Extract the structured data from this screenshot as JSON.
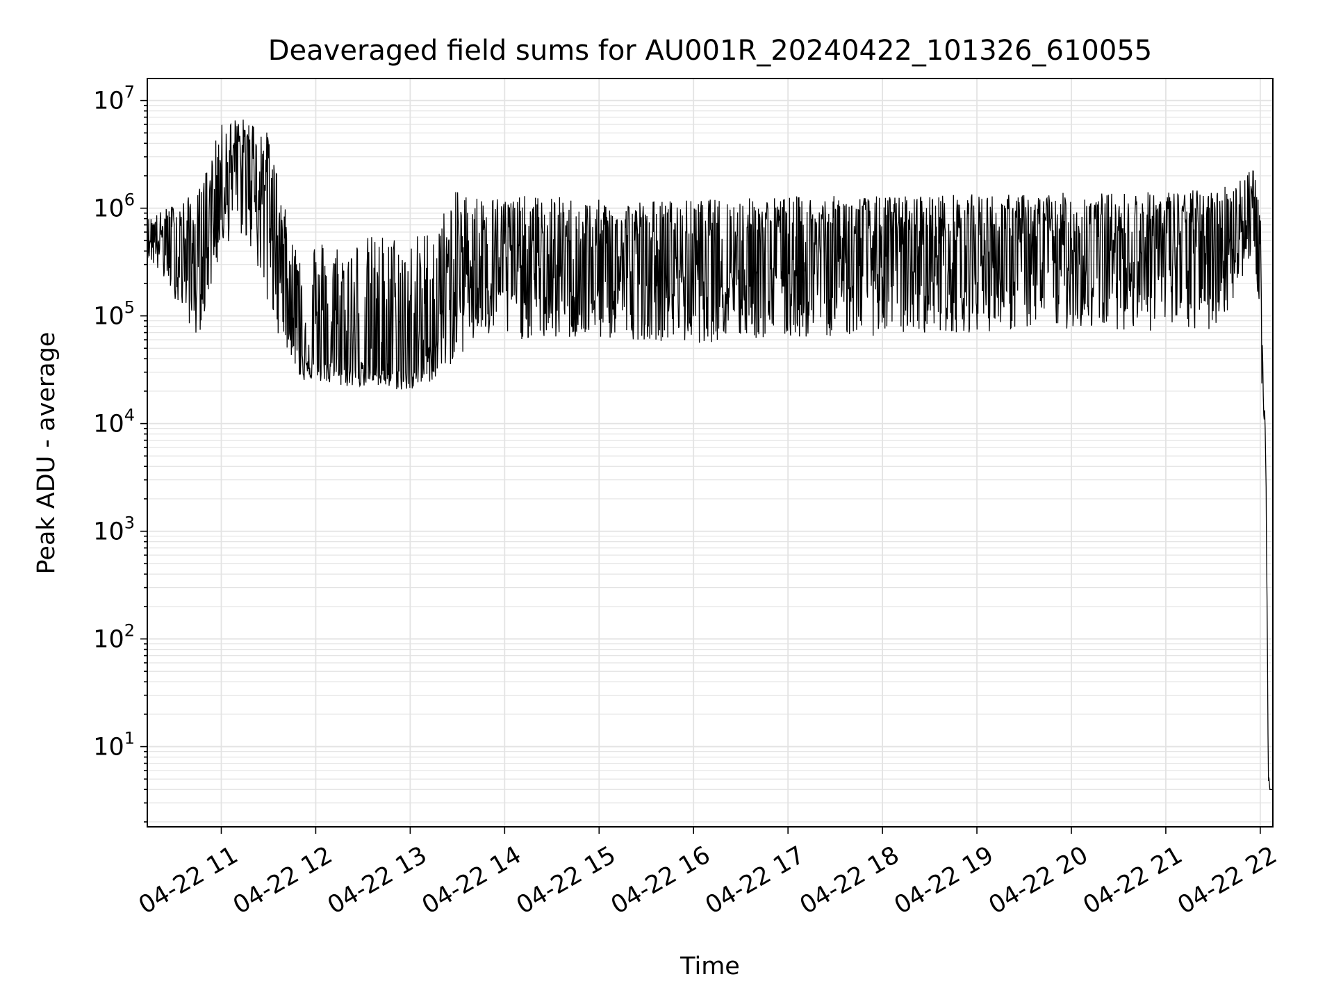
{
  "chart_data": {
    "type": "line",
    "title": "Deaveraged field sums for AU001R_20240422_101326_610055",
    "xlabel": "Time",
    "ylabel": "Peak ADU - average",
    "yscale": "log",
    "ylim": [
      1.8,
      16000000
    ],
    "xlim": [
      "04-22 10:13",
      "04-22 22:08"
    ],
    "x_tick_labels": [
      "04-22 11",
      "04-22 12",
      "04-22 13",
      "04-22 14",
      "04-22 15",
      "04-22 16",
      "04-22 17",
      "04-22 18",
      "04-22 19",
      "04-22 20",
      "04-22 21",
      "04-22 22"
    ],
    "x_tick_values": [
      "04-22 11:00",
      "04-22 12:00",
      "04-22 13:00",
      "04-22 14:00",
      "04-22 15:00",
      "04-22 16:00",
      "04-22 17:00",
      "04-22 18:00",
      "04-22 19:00",
      "04-22 20:00",
      "04-22 21:00",
      "04-22 22:00"
    ],
    "y_tick_values": [
      10,
      100,
      1000,
      10000,
      100000,
      1000000,
      10000000
    ],
    "y_tick_exponents": [
      "1",
      "2",
      "3",
      "4",
      "5",
      "6",
      "7"
    ],
    "y_tick_base": "10",
    "grid": true,
    "legend": "none",
    "line_color": "#000000",
    "grid_color": "#e3e3e3",
    "series": [
      {
        "x": [
          "04-22 10:13",
          "04-22 10:30",
          "04-22 10:45",
          "04-22 11:00",
          "04-22 11:10",
          "04-22 11:20",
          "04-22 11:30",
          "04-22 11:45",
          "04-22 11:50",
          "04-22 12:00",
          "04-22 12:15",
          "04-22 12:30",
          "04-22 12:45",
          "04-22 13:00",
          "04-22 13:15",
          "04-22 13:30",
          "04-22 13:45",
          "04-22 14:00",
          "04-22 14:30",
          "04-22 15:00",
          "04-22 15:30",
          "04-22 16:00",
          "04-22 16:30",
          "04-22 17:00",
          "04-22 17:30",
          "04-22 18:00",
          "04-22 18:30",
          "04-22 19:00",
          "04-22 19:30",
          "04-22 20:00",
          "04-22 20:30",
          "04-22 21:00",
          "04-22 21:30",
          "04-22 21:45",
          "04-22 21:55",
          "04-22 22:00",
          "04-22 22:01",
          "04-22 22:02",
          "04-22 22:03",
          "04-22 22:04",
          "04-22 22:05",
          "04-22 22:06",
          "04-22 22:08"
        ],
        "y": [
          600000,
          500000,
          300000,
          2000000,
          3000000,
          2500000,
          1500000,
          150000,
          50000,
          40000,
          35000,
          40000,
          35000,
          30000,
          60000,
          250000,
          400000,
          350000,
          250000,
          250000,
          300000,
          300000,
          350000,
          350000,
          400000,
          400000,
          400000,
          450000,
          400000,
          450000,
          450000,
          500000,
          500000,
          700000,
          800000,
          500000,
          40000,
          15000,
          11000,
          1000,
          6,
          4,
          4
        ],
        "y_low": [
          350000,
          150000,
          60000,
          400000,
          600000,
          400000,
          100000,
          40000,
          25000,
          25000,
          22000,
          22000,
          21000,
          20000,
          25000,
          40000,
          60000,
          60000,
          60000,
          60000,
          60000,
          55000,
          60000,
          60000,
          65000,
          65000,
          70000,
          70000,
          75000,
          75000,
          75000,
          70000,
          70000,
          150000,
          400000,
          80000,
          20000,
          12000,
          10000,
          500,
          4,
          4,
          4
        ],
        "y_high": [
          800000,
          1100000,
          1400000,
          6000000,
          7000000,
          6500000,
          5000000,
          500000,
          600000,
          550000,
          500000,
          550000,
          600000,
          550000,
          700000,
          1500000,
          1300000,
          1300000,
          1300000,
          1200000,
          1200000,
          1200000,
          1250000,
          1300000,
          1300000,
          1300000,
          1350000,
          1350000,
          1350000,
          1400000,
          1400000,
          1450000,
          1500000,
          1800000,
          2800000,
          1000000,
          100000,
          20000,
          12000,
          1500,
          8,
          4,
          4
        ]
      }
    ]
  }
}
